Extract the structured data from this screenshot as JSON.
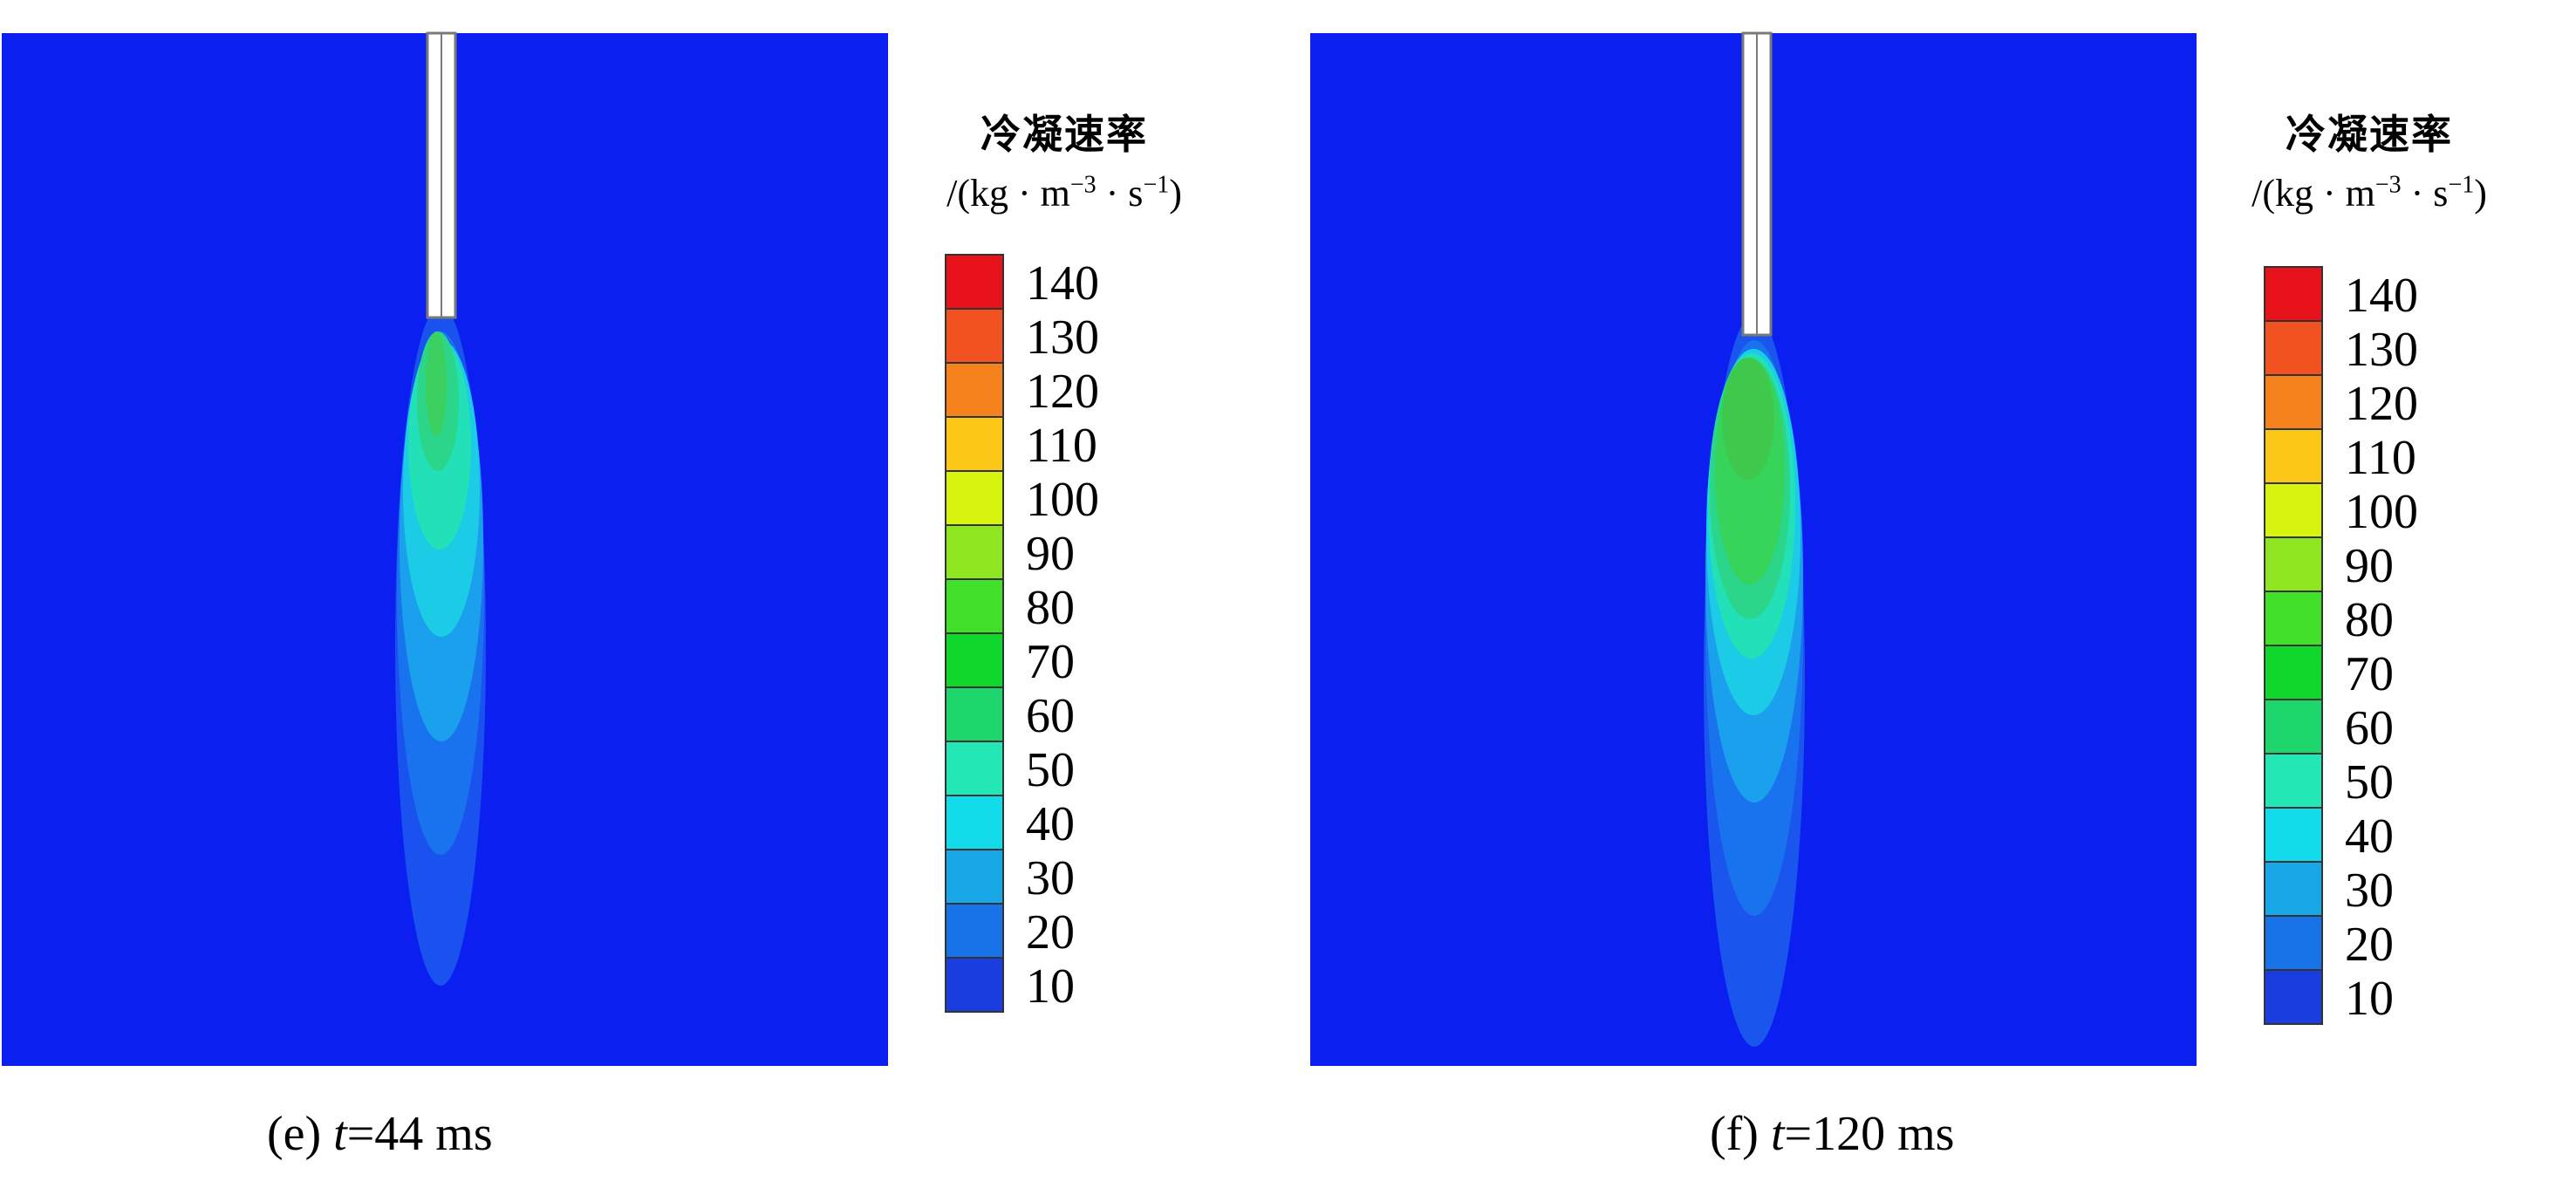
{
  "colorbar": {
    "title": "冷凝速率",
    "unit_prefix": "/(kg · m",
    "unit_exp1": "−3",
    "unit_mid": " · s",
    "unit_exp2": "−1",
    "unit_suffix": ")",
    "levels": [
      "140",
      "130",
      "120",
      "110",
      "100",
      "90",
      "80",
      "70",
      "60",
      "50",
      "40",
      "30",
      "20",
      "10"
    ],
    "colors": [
      "#e8131a",
      "#f25120",
      "#f6821d",
      "#fcc817",
      "#d6f40d",
      "#8fe620",
      "#43e02a",
      "#0fd72b",
      "#1ed76c",
      "#23e7b5",
      "#12dbea",
      "#18a8e8",
      "#1973e8",
      "#1a3de0"
    ]
  },
  "panels": [
    {
      "id": "e",
      "caption_prefix": "(e) ",
      "caption_var": "t",
      "caption_rest": "=44 ms"
    },
    {
      "id": "f",
      "caption_prefix": "(f) ",
      "caption_var": "t",
      "caption_rest": "=120 ms"
    }
  ],
  "background_color": "#0a1ff0"
}
